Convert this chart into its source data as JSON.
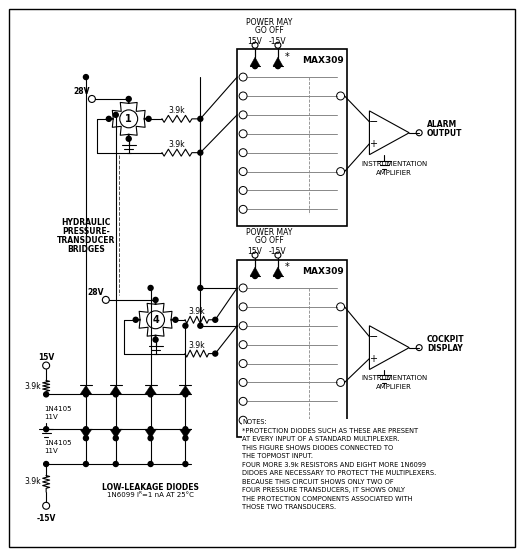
{
  "bg_color": "#ffffff",
  "line_color": "#000000",
  "notes_text": "NOTES:\n*PROTECTION DIODES SUCH AS THESE ARE PRESENT\nAT EVERY INPUT OF A STANDARD MULTIPLEXER.\nTHIS FIGURE SHOWS DIODES CONNECTED TO\nTHE TOPMOST INPUT.\nFOUR MORE 3.9k RESISTORS AND EIGHT MORE 1N6099\nDIDOES ARE NECESSARY TO PROTECT THE MULTIPLEXERS.\nBECAUSE THIS CIRCUIT SHOWS ONLY TWO OF\nFOUR PRESSURE TRANSDUCERS, IT SHOWS ONLY\nTHE PROTECTION COMPONENTS ASSOCIATED WITH\nTHOSE TWO TRANSDUCERS.",
  "mux1_label": "MAX309",
  "mux2_label": "MAX309",
  "alarm_label1": "ALARM",
  "alarm_label2": "OUTPUT",
  "cockpit_label1": "COCKPIT",
  "cockpit_label2": "DISPLAY",
  "instr_amp": "INSTRUMENTATION\nAMPLIFIER",
  "bridge1_num": "1",
  "bridge2_num": "4",
  "hydraulic_label": "HYDRAULIC\nPRESSURE-\nTRANSDUCER\nBRIDGES",
  "low_leakage_label": "LOW-LEAKAGE DIODES\n1N6099 IR=1 nA AT 25°C",
  "v28": "28V",
  "v15": "15V",
  "vm15": "-15V",
  "r39": "3.9k",
  "n1n4105": "1N4105",
  "v11": "11V",
  "power_may": "POWER MAY\nGO OFF"
}
